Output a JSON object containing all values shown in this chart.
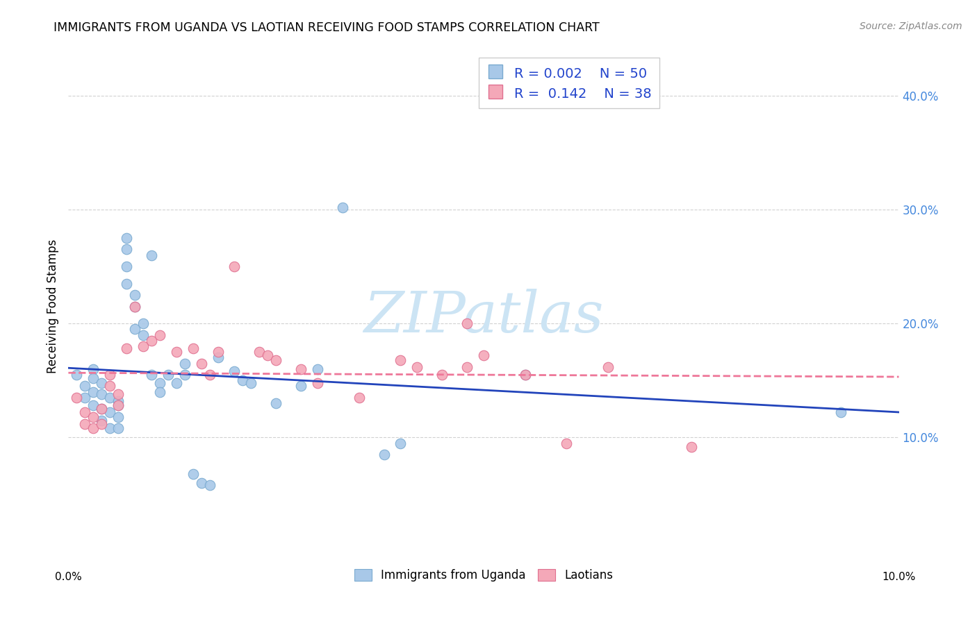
{
  "title": "IMMIGRANTS FROM UGANDA VS LAOTIAN RECEIVING FOOD STAMPS CORRELATION CHART",
  "source": "Source: ZipAtlas.com",
  "ylabel": "Receiving Food Stamps",
  "xlim": [
    0.0,
    0.1
  ],
  "ylim": [
    -0.005,
    0.435
  ],
  "uganda_color": "#a8c8e8",
  "laotian_color": "#f4a8b8",
  "uganda_edge_color": "#7aaad0",
  "laotian_edge_color": "#e07090",
  "uganda_line_color": "#2244bb",
  "laotian_line_color": "#ee7799",
  "watermark_color": "#cce4f4",
  "uganda_scatter_x": [
    0.001,
    0.002,
    0.002,
    0.003,
    0.003,
    0.003,
    0.003,
    0.004,
    0.004,
    0.004,
    0.004,
    0.005,
    0.005,
    0.005,
    0.006,
    0.006,
    0.006,
    0.006,
    0.007,
    0.007,
    0.007,
    0.007,
    0.008,
    0.008,
    0.008,
    0.009,
    0.009,
    0.01,
    0.01,
    0.011,
    0.011,
    0.012,
    0.013,
    0.014,
    0.014,
    0.015,
    0.016,
    0.017,
    0.018,
    0.02,
    0.021,
    0.022,
    0.025,
    0.028,
    0.03,
    0.033,
    0.038,
    0.04,
    0.055,
    0.093
  ],
  "uganda_scatter_y": [
    0.155,
    0.145,
    0.135,
    0.16,
    0.152,
    0.14,
    0.128,
    0.148,
    0.138,
    0.125,
    0.115,
    0.135,
    0.122,
    0.108,
    0.132,
    0.128,
    0.118,
    0.108,
    0.275,
    0.265,
    0.25,
    0.235,
    0.225,
    0.215,
    0.195,
    0.2,
    0.19,
    0.26,
    0.155,
    0.148,
    0.14,
    0.155,
    0.148,
    0.165,
    0.155,
    0.068,
    0.06,
    0.058,
    0.17,
    0.158,
    0.15,
    0.148,
    0.13,
    0.145,
    0.16,
    0.302,
    0.085,
    0.095,
    0.155,
    0.122
  ],
  "laotian_scatter_x": [
    0.001,
    0.002,
    0.002,
    0.003,
    0.003,
    0.004,
    0.004,
    0.005,
    0.005,
    0.006,
    0.006,
    0.007,
    0.008,
    0.009,
    0.01,
    0.011,
    0.013,
    0.015,
    0.016,
    0.017,
    0.018,
    0.02,
    0.023,
    0.024,
    0.025,
    0.028,
    0.03,
    0.035,
    0.04,
    0.042,
    0.045,
    0.048,
    0.05,
    0.055,
    0.06,
    0.065,
    0.075,
    0.048
  ],
  "laotian_scatter_y": [
    0.135,
    0.122,
    0.112,
    0.118,
    0.108,
    0.125,
    0.112,
    0.155,
    0.145,
    0.138,
    0.128,
    0.178,
    0.215,
    0.18,
    0.185,
    0.19,
    0.175,
    0.178,
    0.165,
    0.155,
    0.175,
    0.25,
    0.175,
    0.172,
    0.168,
    0.16,
    0.148,
    0.135,
    0.168,
    0.162,
    0.155,
    0.162,
    0.172,
    0.155,
    0.095,
    0.162,
    0.092,
    0.2
  ]
}
